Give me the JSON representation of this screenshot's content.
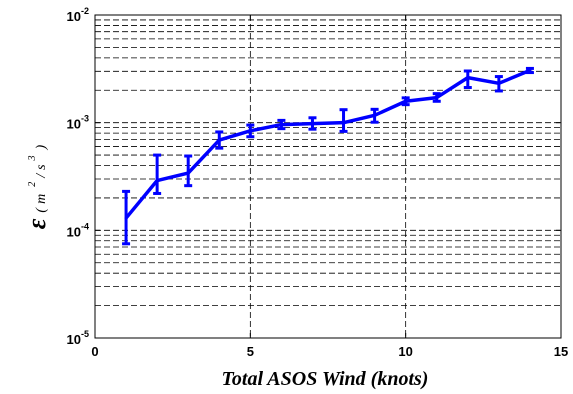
{
  "chart_data": {
    "type": "line",
    "xlabel": "Total ASOS Wind (knots)",
    "ylabel": {
      "symbol": "ε",
      "open_paren": "(",
      "unit_m": "m",
      "exp_2": "2",
      "slash": "/",
      "unit_s": "s",
      "exp_3": "3",
      "close_paren": ")"
    },
    "xlim": [
      0,
      15
    ],
    "ylim": [
      1e-05,
      0.01
    ],
    "yscale": "log",
    "grid": true,
    "x_ticks": [
      {
        "value": 0,
        "label": "0"
      },
      {
        "value": 5,
        "label": "5"
      },
      {
        "value": 10,
        "label": "10"
      },
      {
        "value": 15,
        "label": "15"
      }
    ],
    "y_ticks": [
      {
        "value": 1e-05,
        "base": "10",
        "exp": "-5"
      },
      {
        "value": 0.0001,
        "base": "10",
        "exp": "-4"
      },
      {
        "value": 0.001,
        "base": "10",
        "exp": "-3"
      },
      {
        "value": 0.01,
        "base": "10",
        "exp": "-2"
      }
    ],
    "series": [
      {
        "color": "#0000ff",
        "x": [
          1,
          2,
          3,
          4,
          5,
          6,
          7,
          8,
          9,
          10,
          11,
          12,
          13,
          14
        ],
        "y": [
          0.00013,
          0.00029,
          0.00034,
          0.00069,
          0.00084,
          0.00096,
          0.00098,
          0.001,
          0.00117,
          0.00158,
          0.00171,
          0.00262,
          0.00232,
          0.00306
        ],
        "y_lower": [
          7.5e-05,
          0.00022,
          0.00026,
          0.00058,
          0.00074,
          0.00088,
          0.00087,
          0.00083,
          0.00101,
          0.00147,
          0.00158,
          0.00212,
          0.00197,
          0.00292
        ],
        "y_upper": [
          0.00023,
          0.0005,
          0.00049,
          0.00082,
          0.00095,
          0.00105,
          0.00111,
          0.00132,
          0.00133,
          0.0017,
          0.00186,
          0.00302,
          0.00268,
          0.00319
        ]
      }
    ]
  }
}
